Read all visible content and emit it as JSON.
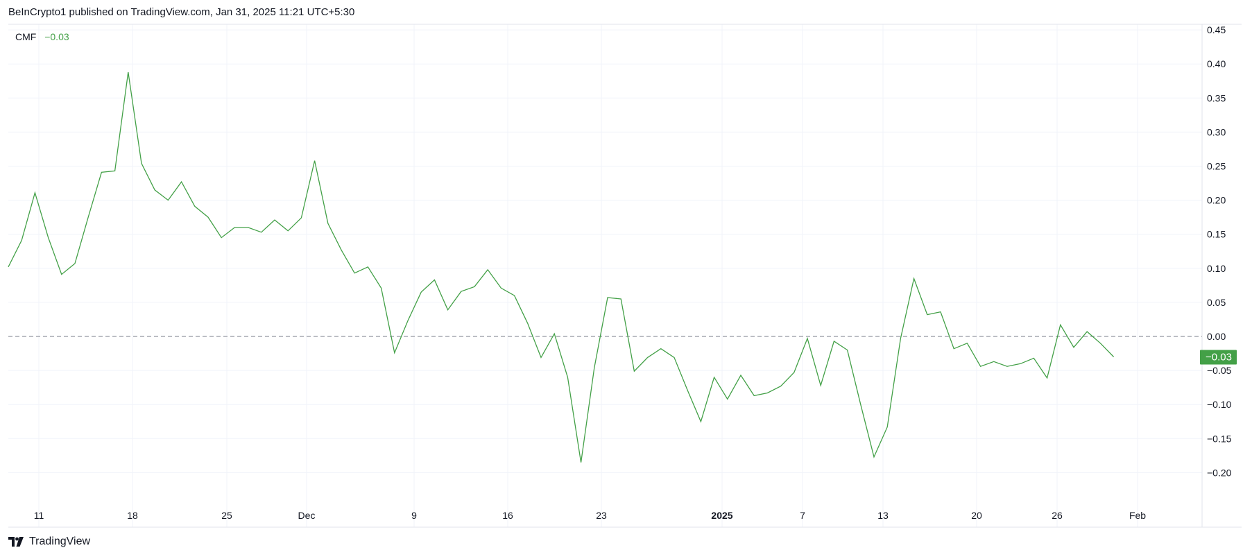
{
  "header": {
    "published_text": "BeInCrypto1 published on TradingView.com, Jan 31, 2025 11:21 UTC+5:30"
  },
  "legend": {
    "name": "CMF",
    "value": "−0.03"
  },
  "footer": {
    "brand": "TradingView"
  },
  "colors": {
    "line": "#43a047",
    "price_label_bg": "#43a047",
    "zero_line": "#9598a1",
    "grid": "#f0f3fa",
    "text": "#131722"
  },
  "chart_data": {
    "type": "line",
    "title": "",
    "xlabel": "",
    "ylabel": "",
    "ylim": [
      -0.25,
      0.45
    ],
    "y_ticks": [
      "0.45",
      "0.40",
      "0.35",
      "0.30",
      "0.25",
      "0.20",
      "0.15",
      "0.10",
      "0.05",
      "0.00",
      "−0.05",
      "−0.10",
      "−0.15",
      "−0.20"
    ],
    "x_ticks": [
      {
        "label": "11",
        "bold": false
      },
      {
        "label": "18",
        "bold": false
      },
      {
        "label": "25",
        "bold": false
      },
      {
        "label": "Dec",
        "bold": false
      },
      {
        "label": "9",
        "bold": false
      },
      {
        "label": "16",
        "bold": false
      },
      {
        "label": "23",
        "bold": false
      },
      {
        "label": "2025",
        "bold": true
      },
      {
        "label": "7",
        "bold": false
      },
      {
        "label": "13",
        "bold": false
      },
      {
        "label": "20",
        "bold": false
      },
      {
        "label": "26",
        "bold": false
      },
      {
        "label": "Feb",
        "bold": false
      }
    ],
    "zero_line": 0,
    "last_value_label": "−0.03",
    "series": [
      {
        "values": [
          0.102,
          0.141,
          0.211,
          0.145,
          0.091,
          0.107,
          0.175,
          0.241,
          0.243,
          0.388,
          0.254,
          0.215,
          0.2,
          0.227,
          0.191,
          0.175,
          0.145,
          0.16,
          0.16,
          0.153,
          0.171,
          0.155,
          0.174,
          0.258,
          0.166,
          0.127,
          0.093,
          0.102,
          0.071,
          -0.024,
          0.023,
          0.065,
          0.083,
          0.039,
          0.066,
          0.073,
          0.098,
          0.071,
          0.06,
          0.019,
          -0.031,
          0.004,
          -0.06,
          -0.185,
          -0.046,
          0.057,
          0.055,
          -0.051,
          -0.031,
          -0.018,
          -0.031,
          -0.079,
          -0.125,
          -0.06,
          -0.092,
          -0.057,
          -0.087,
          -0.083,
          -0.073,
          -0.053,
          -0.003,
          -0.072,
          -0.007,
          -0.02,
          -0.1,
          -0.177,
          -0.133,
          -0.003,
          0.085,
          0.032,
          0.036,
          -0.018,
          -0.01,
          -0.044,
          -0.037,
          -0.044,
          -0.04,
          -0.032,
          -0.061,
          0.017,
          -0.016,
          0.007,
          -0.01,
          -0.03
        ]
      }
    ]
  }
}
